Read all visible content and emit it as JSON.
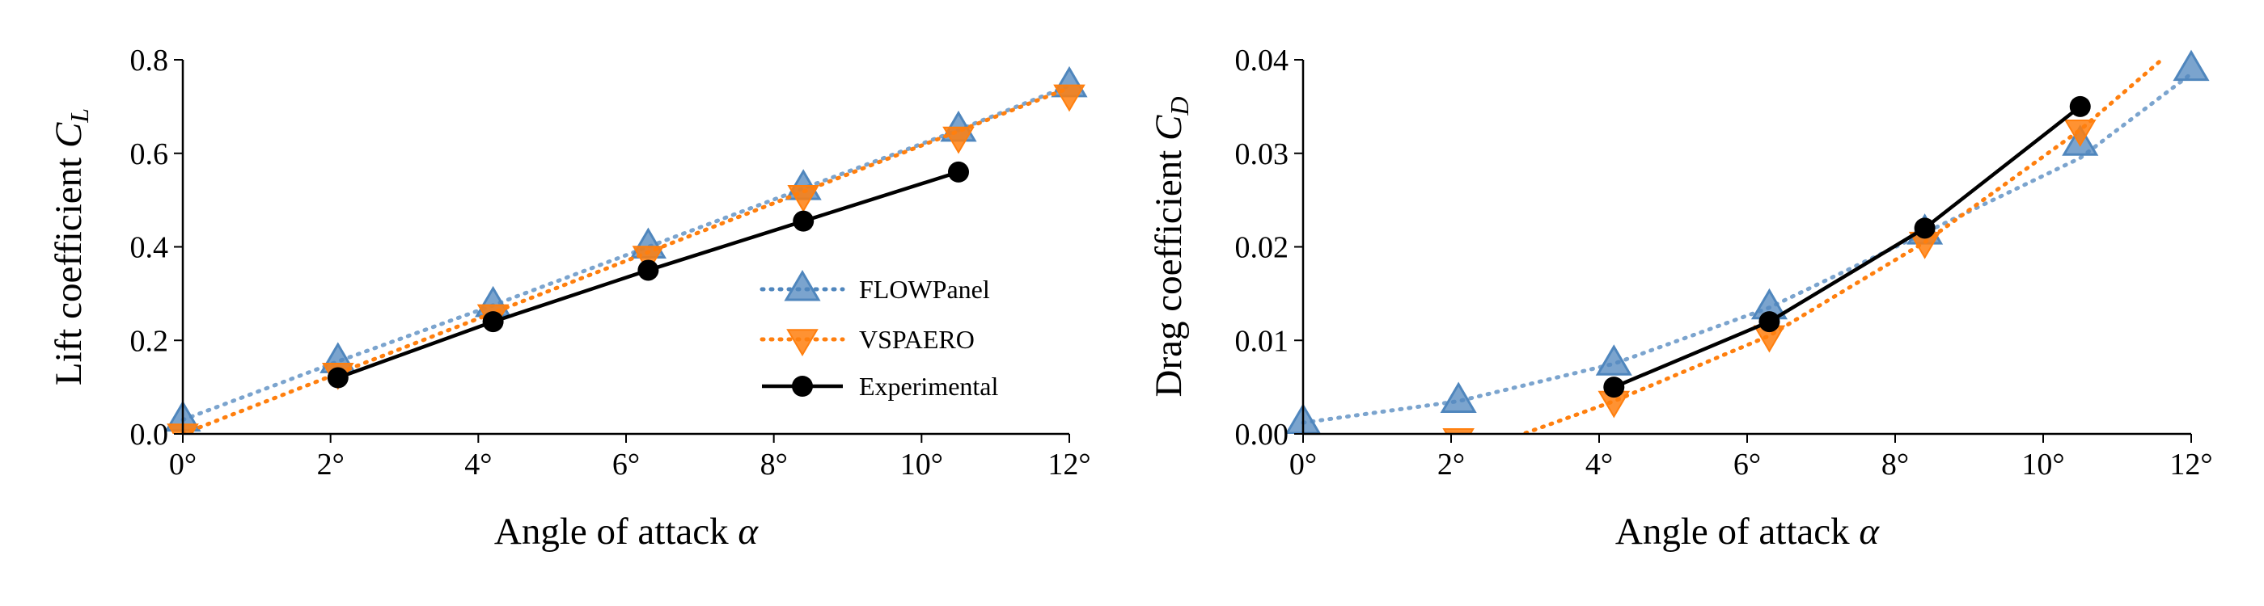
{
  "colors": {
    "flowpanel": "#4f86bd",
    "vspaero": "#ff7f0e",
    "experimental": "#000000"
  },
  "chart_data": [
    {
      "type": "line",
      "title": "",
      "xlabel_text": "Angle of attack",
      "xlabel_symbol": "α",
      "ylabel_text": "Lift coefficient",
      "ylabel_symbol": "C",
      "ylabel_subscript": "L",
      "xlim": [
        0,
        12
      ],
      "ylim": [
        0,
        0.8
      ],
      "xticks": [
        0,
        2,
        4,
        6,
        8,
        10,
        12
      ],
      "xtick_labels": [
        "0°",
        "2°",
        "4°",
        "6°",
        "8°",
        "10°",
        "12°"
      ],
      "yticks": [
        0,
        0.2,
        0.4,
        0.6,
        0.8
      ],
      "ytick_labels": [
        "0.0",
        "0.2",
        "0.4",
        "0.6",
        "0.8"
      ],
      "grid": false,
      "legend_position": "lower-right",
      "series": [
        {
          "name": "FLOWPanel",
          "style": "dotted",
          "marker": "triangle-up",
          "color": "#4f86bd",
          "x": [
            0,
            2.1,
            4.2,
            6.3,
            8.4,
            10.5,
            12
          ],
          "y": [
            0.03,
            0.155,
            0.275,
            0.4,
            0.525,
            0.65,
            0.745
          ]
        },
        {
          "name": "VSPAERO",
          "style": "dotted",
          "marker": "triangle-down",
          "color": "#ff7f0e",
          "x": [
            0,
            2.1,
            4.2,
            6.3,
            8.4,
            10.5,
            12
          ],
          "y": [
            0.0,
            0.13,
            0.255,
            0.38,
            0.51,
            0.635,
            0.725
          ],
          "line_x": [
            0,
            12
          ],
          "line_y": [
            0.0,
            0.74
          ]
        },
        {
          "name": "Experimental",
          "style": "solid",
          "marker": "circle",
          "color": "#000000",
          "x": [
            2.1,
            4.2,
            6.3,
            8.4,
            10.5
          ],
          "y": [
            0.12,
            0.24,
            0.35,
            0.455,
            0.56
          ]
        }
      ]
    },
    {
      "type": "line",
      "title": "",
      "xlabel_text": "Angle of attack",
      "xlabel_symbol": "α",
      "ylabel_text": "Drag coefficient",
      "ylabel_symbol": "C",
      "ylabel_subscript": "D",
      "xlim": [
        0,
        12
      ],
      "ylim": [
        0,
        0.04
      ],
      "xticks": [
        0,
        2,
        4,
        6,
        8,
        10,
        12
      ],
      "xtick_labels": [
        "0°",
        "2°",
        "4°",
        "6°",
        "8°",
        "10°",
        "12°"
      ],
      "yticks": [
        0,
        0.01,
        0.02,
        0.03,
        0.04
      ],
      "ytick_labels": [
        "0.00",
        "0.01",
        "0.02",
        "0.03",
        "0.04"
      ],
      "grid": false,
      "legend_position": "none",
      "series": [
        {
          "name": "FLOWPanel",
          "style": "dotted",
          "marker": "triangle-up",
          "color": "#4f86bd",
          "x": [
            0,
            2.1,
            4.2,
            6.3,
            8.4,
            10.5,
            12
          ],
          "y": [
            0.0012,
            0.0035,
            0.0075,
            0.0135,
            0.0215,
            0.031,
            0.039
          ],
          "line_x": [
            0,
            2.1,
            4.2,
            6.3,
            8.4,
            10.5,
            12
          ],
          "line_y": [
            0.0012,
            0.0035,
            0.0075,
            0.0135,
            0.0215,
            0.0295,
            0.0385
          ]
        },
        {
          "name": "VSPAERO",
          "style": "dotted",
          "marker": "triangle-down",
          "color": "#ff7f0e",
          "x": [
            2.1,
            4.2,
            6.3,
            8.4,
            10.5
          ],
          "y": [
            -0.0005,
            0.0035,
            0.0105,
            0.0205,
            0.0325
          ],
          "line_x": [
            2.1,
            4.2,
            6.3,
            8.4,
            10.5,
            11.6
          ],
          "line_y": [
            -0.0025,
            0.0035,
            0.0105,
            0.0205,
            0.0325,
            0.04
          ]
        },
        {
          "name": "Experimental",
          "style": "solid",
          "marker": "circle",
          "color": "#000000",
          "x": [
            4.2,
            6.3,
            8.4,
            10.5
          ],
          "y": [
            0.005,
            0.012,
            0.022,
            0.035
          ]
        }
      ]
    }
  ]
}
